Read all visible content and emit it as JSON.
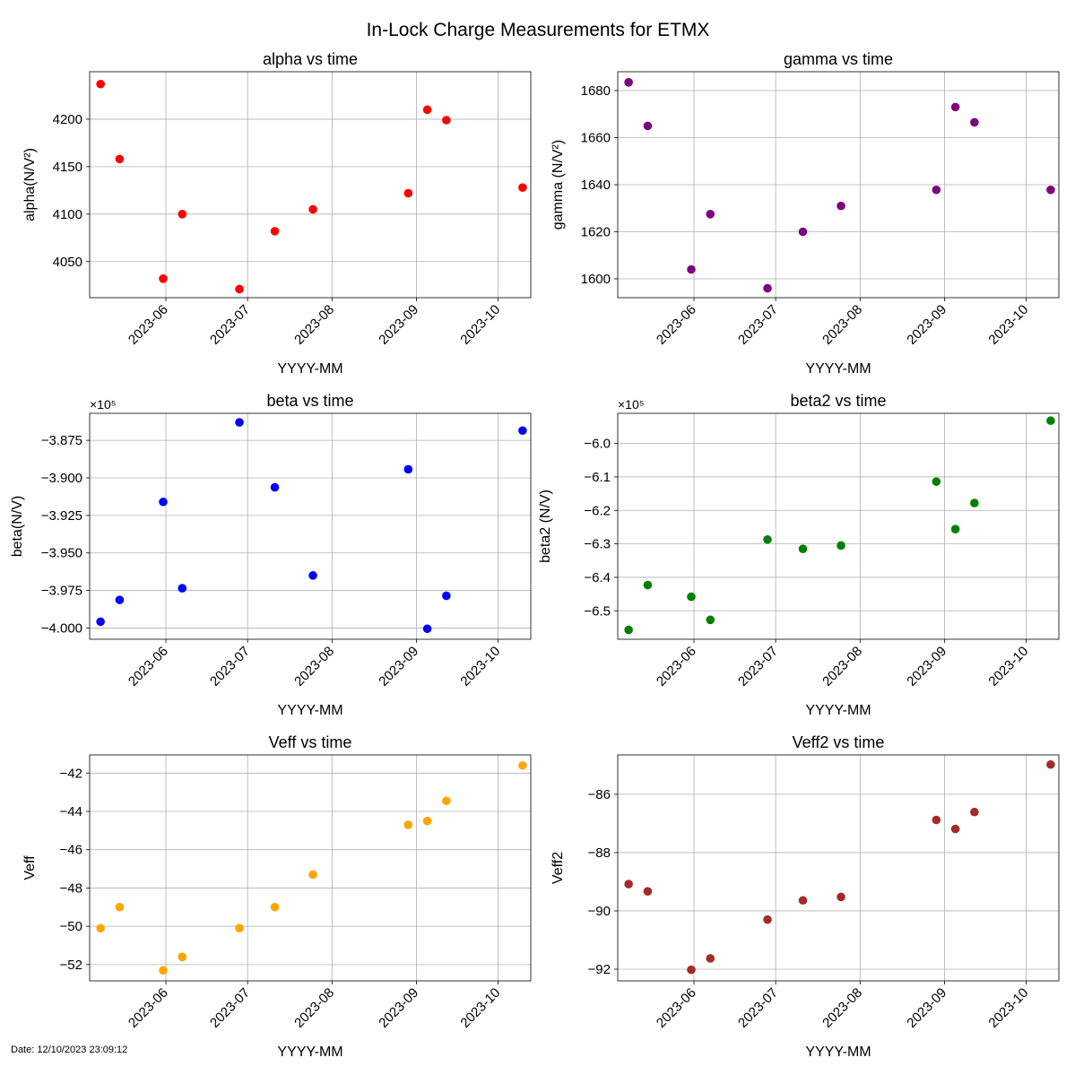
{
  "figure": {
    "suptitle": "In-Lock Charge Measurements for ETMX",
    "footer": "Date: 12/10/2023 23:09:12"
  },
  "chart_data": [
    {
      "type": "scatter",
      "title": "alpha vs time",
      "xlabel": "YYYY-MM",
      "ylabel": "alpha(N/V²)",
      "color": "#ff0000",
      "scale_label": "",
      "x": [
        "2023-05-08",
        "2023-05-15",
        "2023-05-31",
        "2023-06-07",
        "2023-06-28",
        "2023-07-11",
        "2023-07-25",
        "2023-08-29",
        "2023-09-05",
        "2023-09-12",
        "2023-10-10"
      ],
      "y": [
        4237,
        4158,
        4032,
        4100,
        4021,
        4082,
        4105,
        4122,
        4210,
        4199,
        4128
      ],
      "xlim": [
        "2023-05-04",
        "2023-10-13"
      ],
      "ylim": [
        4012,
        4250
      ],
      "yticks": [
        4050,
        4100,
        4150,
        4200
      ],
      "yticklabels": [
        "4050",
        "4100",
        "4150",
        "4200"
      ],
      "xticks": [
        "2023-06-01",
        "2023-07-01",
        "2023-08-01",
        "2023-09-01",
        "2023-10-01"
      ],
      "xticklabels": [
        "2023-06",
        "2023-07",
        "2023-08",
        "2023-09",
        "2023-10"
      ],
      "grid": true
    },
    {
      "type": "scatter",
      "title": "gamma vs time",
      "xlabel": "YYYY-MM",
      "ylabel": "gamma (N/V²)",
      "color": "#800080",
      "scale_label": "",
      "x": [
        "2023-05-08",
        "2023-05-15",
        "2023-05-31",
        "2023-06-07",
        "2023-06-28",
        "2023-07-11",
        "2023-07-25",
        "2023-08-29",
        "2023-09-05",
        "2023-09-12",
        "2023-10-10"
      ],
      "y": [
        1683.5,
        1665,
        1604,
        1627.5,
        1596,
        1620,
        1631,
        1637.8,
        1673,
        1666.5,
        1637.8
      ],
      "xlim": [
        "2023-05-04",
        "2023-10-13"
      ],
      "ylim": [
        1592,
        1688
      ],
      "yticks": [
        1600,
        1620,
        1640,
        1660,
        1680
      ],
      "yticklabels": [
        "1600",
        "1620",
        "1640",
        "1660",
        "1680"
      ],
      "xticks": [
        "2023-06-01",
        "2023-07-01",
        "2023-08-01",
        "2023-09-01",
        "2023-10-01"
      ],
      "xticklabels": [
        "2023-06",
        "2023-07",
        "2023-08",
        "2023-09",
        "2023-10"
      ],
      "grid": true
    },
    {
      "type": "scatter",
      "title": "beta vs time",
      "xlabel": "YYYY-MM",
      "ylabel": "beta(N/V)",
      "color": "#0000ff",
      "scale_label": "×10⁵",
      "x": [
        "2023-05-08",
        "2023-05-15",
        "2023-05-31",
        "2023-06-07",
        "2023-06-28",
        "2023-07-11",
        "2023-07-25",
        "2023-08-29",
        "2023-09-05",
        "2023-09-12",
        "2023-10-10"
      ],
      "y": [
        -3.9958,
        -3.9813,
        -3.916,
        -3.9735,
        -3.863,
        -3.9063,
        -3.965,
        -3.8943,
        -4.0005,
        -3.9785,
        -3.8685
      ],
      "xlim": [
        "2023-05-04",
        "2023-10-13"
      ],
      "ylim": [
        -4.0075,
        -3.857
      ],
      "yticks": [
        -4.0,
        -3.975,
        -3.95,
        -3.925,
        -3.9,
        -3.875
      ],
      "yticklabels": [
        "−4.000",
        "−3.975",
        "−3.950",
        "−3.925",
        "−3.900",
        "−3.875"
      ],
      "xticks": [
        "2023-06-01",
        "2023-07-01",
        "2023-08-01",
        "2023-09-01",
        "2023-10-01"
      ],
      "xticklabels": [
        "2023-06",
        "2023-07",
        "2023-08",
        "2023-09",
        "2023-10"
      ],
      "grid": true
    },
    {
      "type": "scatter",
      "title": "beta2 vs time",
      "xlabel": "YYYY-MM",
      "ylabel": "beta2 (N/V)",
      "color": "#008000",
      "scale_label": "×10⁵",
      "x": [
        "2023-05-08",
        "2023-05-15",
        "2023-05-31",
        "2023-06-07",
        "2023-06-28",
        "2023-07-11",
        "2023-07-25",
        "2023-08-29",
        "2023-09-05",
        "2023-09-12",
        "2023-10-10"
      ],
      "y": [
        -6.557,
        -6.423,
        -6.458,
        -6.527,
        -6.287,
        -6.315,
        -6.305,
        -6.114,
        -6.256,
        -6.178,
        -5.932
      ],
      "xlim": [
        "2023-05-04",
        "2023-10-13"
      ],
      "ylim": [
        -6.585,
        -5.91
      ],
      "yticks": [
        -6.5,
        -6.4,
        -6.3,
        -6.2,
        -6.1,
        -6.0
      ],
      "yticklabels": [
        "−6.5",
        "−6.4",
        "−6.3",
        "−6.2",
        "−6.1",
        "−6.0"
      ],
      "xticks": [
        "2023-06-01",
        "2023-07-01",
        "2023-08-01",
        "2023-09-01",
        "2023-10-01"
      ],
      "xticklabels": [
        "2023-06",
        "2023-07",
        "2023-08",
        "2023-09",
        "2023-10"
      ],
      "grid": true
    },
    {
      "type": "scatter",
      "title": "Veff vs time",
      "xlabel": "YYYY-MM",
      "ylabel": "Veff",
      "color": "#ffa500",
      "scale_label": "",
      "x": [
        "2023-05-08",
        "2023-05-15",
        "2023-05-31",
        "2023-06-07",
        "2023-06-28",
        "2023-07-11",
        "2023-07-25",
        "2023-08-29",
        "2023-09-05",
        "2023-09-12",
        "2023-10-10"
      ],
      "y": [
        -50.1,
        -49.0,
        -52.3,
        -51.6,
        -50.1,
        -49.0,
        -47.3,
        -44.7,
        -44.5,
        -43.45,
        -41.6
      ],
      "xlim": [
        "2023-05-04",
        "2023-10-13"
      ],
      "ylim": [
        -52.85,
        -41.05
      ],
      "yticks": [
        -52,
        -50,
        -48,
        -46,
        -44,
        -42
      ],
      "yticklabels": [
        "−52",
        "−50",
        "−48",
        "−46",
        "−44",
        "−42"
      ],
      "xticks": [
        "2023-06-01",
        "2023-07-01",
        "2023-08-01",
        "2023-09-01",
        "2023-10-01"
      ],
      "xticklabels": [
        "2023-06",
        "2023-07",
        "2023-08",
        "2023-09",
        "2023-10"
      ],
      "grid": true
    },
    {
      "type": "scatter",
      "title": "Veff2 vs time",
      "xlabel": "YYYY-MM",
      "ylabel": "Veff2",
      "color": "#a52a2a",
      "scale_label": "",
      "x": [
        "2023-05-08",
        "2023-05-15",
        "2023-05-31",
        "2023-06-07",
        "2023-06-28",
        "2023-07-11",
        "2023-07-25",
        "2023-08-29",
        "2023-09-05",
        "2023-09-12",
        "2023-10-10"
      ],
      "y": [
        -89.08,
        -89.33,
        -92.02,
        -91.63,
        -90.3,
        -89.64,
        -89.52,
        -86.88,
        -87.19,
        -86.61,
        -84.98
      ],
      "xlim": [
        "2023-05-04",
        "2023-10-13"
      ],
      "ylim": [
        -92.4,
        -84.65
      ],
      "yticks": [
        -92,
        -90,
        -88,
        -86
      ],
      "yticklabels": [
        "−92",
        "−90",
        "−88",
        "−86"
      ],
      "xticks": [
        "2023-06-01",
        "2023-07-01",
        "2023-08-01",
        "2023-09-01",
        "2023-10-01"
      ],
      "xticklabels": [
        "2023-06",
        "2023-07",
        "2023-08",
        "2023-09",
        "2023-10"
      ],
      "grid": true
    }
  ]
}
